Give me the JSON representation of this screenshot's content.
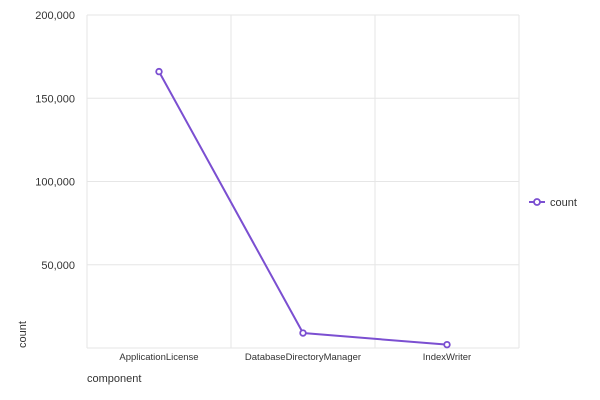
{
  "chart_data": {
    "type": "line",
    "categories": [
      "ApplicationLicense",
      "DatabaseDirectoryManager",
      "IndexWriter"
    ],
    "series": [
      {
        "name": "count",
        "values": [
          166000,
          9000,
          2000
        ]
      }
    ],
    "xlabel": "component",
    "ylabel": "count",
    "ylim": [
      0,
      200000
    ],
    "yticks": [
      50000,
      100000,
      150000,
      200000
    ],
    "ytick_labels": [
      "50,000",
      "100,000",
      "150,000",
      "200,000"
    ],
    "grid": true,
    "legend_position": "right",
    "colors": {
      "series": "#7b4fd1",
      "grid": "#e6e6e6",
      "text": "#333333"
    }
  }
}
